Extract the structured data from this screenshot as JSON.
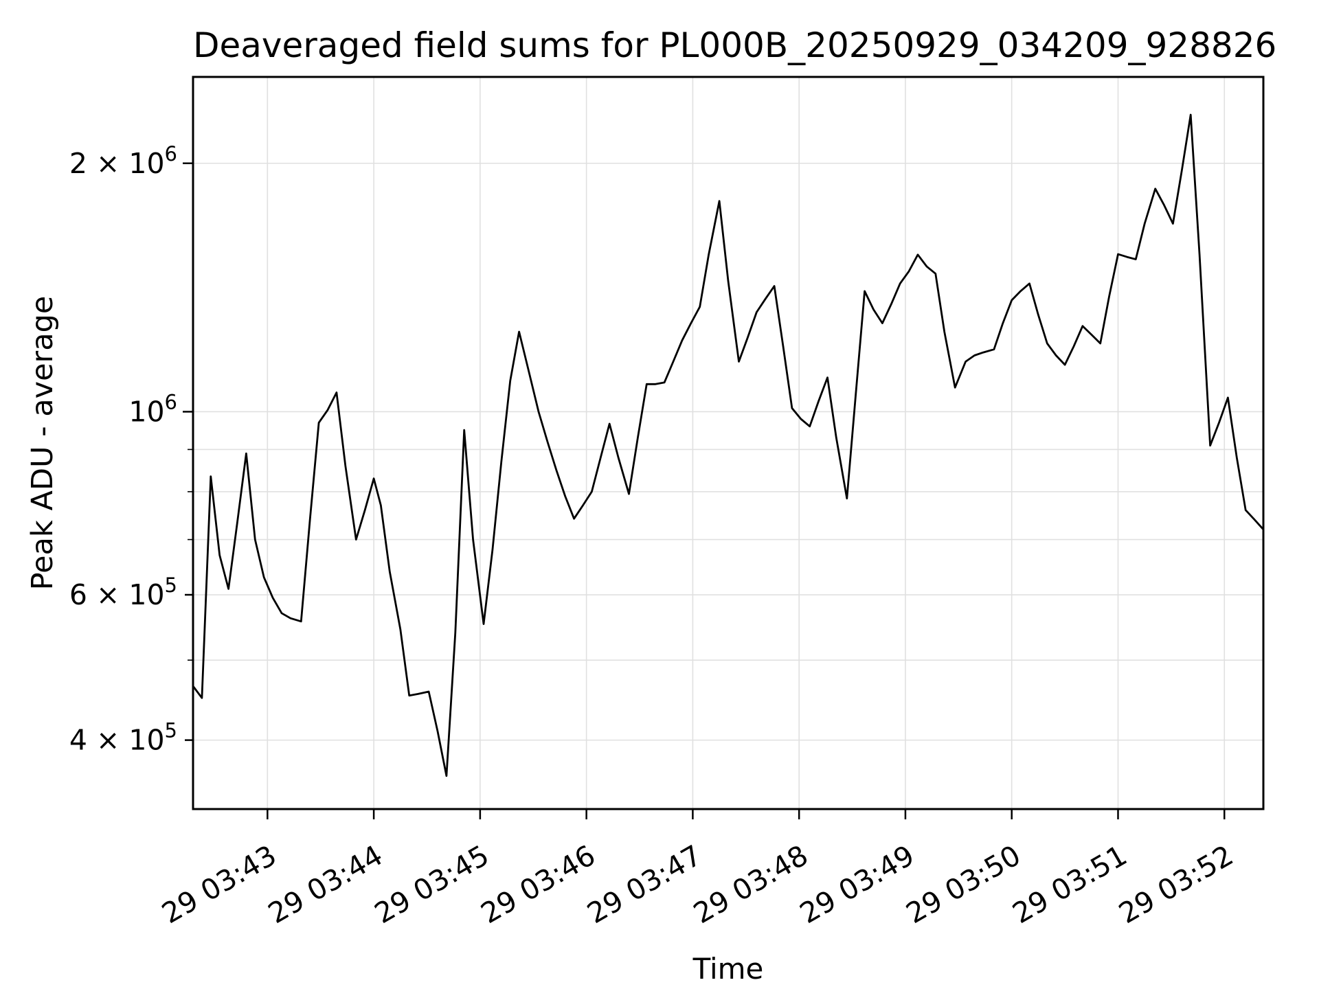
{
  "figure": {
    "title": "Deaveraged field sums for PL000B_20250929_034209_928826",
    "xlabel": "Time",
    "ylabel": "Peak ADU - average"
  },
  "chart_data": {
    "type": "line",
    "title": "Deaveraged field sums for PL000B_20250929_034209_928826",
    "xlabel": "Time",
    "ylabel": "Peak ADU - average",
    "log_y": true,
    "grid": "both",
    "legend": null,
    "background": "#ffffff",
    "line_color": "#000000",
    "grid_color": "#e0e0e0",
    "spine_color": "#000000",
    "xlim": [
      "03:42:18",
      "03:52:22"
    ],
    "ylim": [
      330000,
      2545000
    ],
    "x_ticks": [
      {
        "time": "03:43:00",
        "label": "29 03:43"
      },
      {
        "time": "03:44:00",
        "label": "29 03:44"
      },
      {
        "time": "03:45:00",
        "label": "29 03:45"
      },
      {
        "time": "03:46:00",
        "label": "29 03:46"
      },
      {
        "time": "03:47:00",
        "label": "29 03:47"
      },
      {
        "time": "03:48:00",
        "label": "29 03:48"
      },
      {
        "time": "03:49:00",
        "label": "29 03:49"
      },
      {
        "time": "03:50:00",
        "label": "29 03:50"
      },
      {
        "time": "03:51:00",
        "label": "29 03:51"
      },
      {
        "time": "03:52:00",
        "label": "29 03:52"
      }
    ],
    "y_ticks_major": [
      {
        "value": 2000000,
        "label_base": "2 × 10",
        "label_exp": "6"
      },
      {
        "value": 1000000,
        "label_base": "10",
        "label_exp": "6"
      },
      {
        "value": 600000,
        "label_base": "6 × 10",
        "label_exp": "5"
      },
      {
        "value": 400000,
        "label_base": "4 × 10",
        "label_exp": "5"
      }
    ],
    "y_ticks_minor": [
      900000,
      800000,
      700000,
      500000
    ],
    "series": [
      {
        "name": "deaveraged-field-sums",
        "points": [
          {
            "t": "03:42:18",
            "v": 465000
          },
          {
            "t": "03:42:23",
            "v": 450000
          },
          {
            "t": "03:42:28",
            "v": 835000
          },
          {
            "t": "03:42:33",
            "v": 670000
          },
          {
            "t": "03:42:38",
            "v": 610000
          },
          {
            "t": "03:42:43",
            "v": 735000
          },
          {
            "t": "03:42:48",
            "v": 890000
          },
          {
            "t": "03:42:53",
            "v": 700000
          },
          {
            "t": "03:42:58",
            "v": 630000
          },
          {
            "t": "03:43:03",
            "v": 595000
          },
          {
            "t": "03:43:08",
            "v": 570000
          },
          {
            "t": "03:43:13",
            "v": 562000
          },
          {
            "t": "03:43:19",
            "v": 557000
          },
          {
            "t": "03:43:24",
            "v": 740000
          },
          {
            "t": "03:43:29",
            "v": 970000
          },
          {
            "t": "03:43:34",
            "v": 1005000
          },
          {
            "t": "03:43:39",
            "v": 1055000
          },
          {
            "t": "03:43:44",
            "v": 860000
          },
          {
            "t": "03:43:50",
            "v": 700000
          },
          {
            "t": "03:43:55",
            "v": 760000
          },
          {
            "t": "03:44:00",
            "v": 830000
          },
          {
            "t": "03:44:04",
            "v": 770000
          },
          {
            "t": "03:44:09",
            "v": 640000
          },
          {
            "t": "03:44:15",
            "v": 545000
          },
          {
            "t": "03:44:20",
            "v": 453000
          },
          {
            "t": "03:44:25",
            "v": 455000
          },
          {
            "t": "03:44:31",
            "v": 458000
          },
          {
            "t": "03:44:36",
            "v": 410000
          },
          {
            "t": "03:44:41",
            "v": 362000
          },
          {
            "t": "03:44:46",
            "v": 540000
          },
          {
            "t": "03:44:51",
            "v": 950000
          },
          {
            "t": "03:44:56",
            "v": 700000
          },
          {
            "t": "03:45:02",
            "v": 553000
          },
          {
            "t": "03:45:07",
            "v": 680000
          },
          {
            "t": "03:45:12",
            "v": 870000
          },
          {
            "t": "03:45:17",
            "v": 1090000
          },
          {
            "t": "03:45:22",
            "v": 1250000
          },
          {
            "t": "03:45:27",
            "v": 1130000
          },
          {
            "t": "03:45:33",
            "v": 1000000
          },
          {
            "t": "03:45:38",
            "v": 920000
          },
          {
            "t": "03:45:43",
            "v": 850000
          },
          {
            "t": "03:45:48",
            "v": 790000
          },
          {
            "t": "03:45:53",
            "v": 742000
          },
          {
            "t": "03:45:58",
            "v": 770000
          },
          {
            "t": "03:46:03",
            "v": 800000
          },
          {
            "t": "03:46:08",
            "v": 880000
          },
          {
            "t": "03:46:13",
            "v": 967000
          },
          {
            "t": "03:46:18",
            "v": 880000
          },
          {
            "t": "03:46:24",
            "v": 795000
          },
          {
            "t": "03:46:29",
            "v": 930000
          },
          {
            "t": "03:46:34",
            "v": 1080000
          },
          {
            "t": "03:46:39",
            "v": 1080000
          },
          {
            "t": "03:46:44",
            "v": 1085000
          },
          {
            "t": "03:46:49",
            "v": 1150000
          },
          {
            "t": "03:46:54",
            "v": 1220000
          },
          {
            "t": "03:46:59",
            "v": 1280000
          },
          {
            "t": "03:47:04",
            "v": 1340000
          },
          {
            "t": "03:47:09",
            "v": 1550000
          },
          {
            "t": "03:47:15",
            "v": 1800000
          },
          {
            "t": "03:47:20",
            "v": 1440000
          },
          {
            "t": "03:47:26",
            "v": 1150000
          },
          {
            "t": "03:47:31",
            "v": 1230000
          },
          {
            "t": "03:47:36",
            "v": 1320000
          },
          {
            "t": "03:47:41",
            "v": 1370000
          },
          {
            "t": "03:47:46",
            "v": 1420000
          },
          {
            "t": "03:47:51",
            "v": 1200000
          },
          {
            "t": "03:47:56",
            "v": 1010000
          },
          {
            "t": "03:48:01",
            "v": 980000
          },
          {
            "t": "03:48:06",
            "v": 960000
          },
          {
            "t": "03:48:11",
            "v": 1030000
          },
          {
            "t": "03:48:16",
            "v": 1100000
          },
          {
            "t": "03:48:21",
            "v": 930000
          },
          {
            "t": "03:48:27",
            "v": 785000
          },
          {
            "t": "03:48:32",
            "v": 1050000
          },
          {
            "t": "03:48:37",
            "v": 1400000
          },
          {
            "t": "03:48:42",
            "v": 1330000
          },
          {
            "t": "03:48:47",
            "v": 1280000
          },
          {
            "t": "03:48:52",
            "v": 1350000
          },
          {
            "t": "03:48:57",
            "v": 1430000
          },
          {
            "t": "03:49:02",
            "v": 1480000
          },
          {
            "t": "03:49:07",
            "v": 1550000
          },
          {
            "t": "03:49:12",
            "v": 1500000
          },
          {
            "t": "03:49:17",
            "v": 1470000
          },
          {
            "t": "03:49:22",
            "v": 1250000
          },
          {
            "t": "03:49:28",
            "v": 1070000
          },
          {
            "t": "03:49:34",
            "v": 1150000
          },
          {
            "t": "03:49:39",
            "v": 1170000
          },
          {
            "t": "03:49:44",
            "v": 1180000
          },
          {
            "t": "03:49:50",
            "v": 1190000
          },
          {
            "t": "03:49:55",
            "v": 1280000
          },
          {
            "t": "03:50:00",
            "v": 1365000
          },
          {
            "t": "03:50:05",
            "v": 1400000
          },
          {
            "t": "03:50:10",
            "v": 1430000
          },
          {
            "t": "03:50:15",
            "v": 1310000
          },
          {
            "t": "03:50:20",
            "v": 1210000
          },
          {
            "t": "03:50:25",
            "v": 1170000
          },
          {
            "t": "03:50:30",
            "v": 1140000
          },
          {
            "t": "03:50:35",
            "v": 1200000
          },
          {
            "t": "03:50:40",
            "v": 1270000
          },
          {
            "t": "03:50:45",
            "v": 1240000
          },
          {
            "t": "03:50:50",
            "v": 1210000
          },
          {
            "t": "03:50:55",
            "v": 1380000
          },
          {
            "t": "03:51:00",
            "v": 1552000
          },
          {
            "t": "03:51:05",
            "v": 1540000
          },
          {
            "t": "03:51:10",
            "v": 1530000
          },
          {
            "t": "03:51:15",
            "v": 1690000
          },
          {
            "t": "03:51:21",
            "v": 1863000
          },
          {
            "t": "03:51:26",
            "v": 1780000
          },
          {
            "t": "03:51:31",
            "v": 1690000
          },
          {
            "t": "03:51:36",
            "v": 1960000
          },
          {
            "t": "03:51:41",
            "v": 2290000
          },
          {
            "t": "03:51:46",
            "v": 1550000
          },
          {
            "t": "03:51:52",
            "v": 910000
          },
          {
            "t": "03:51:57",
            "v": 970000
          },
          {
            "t": "03:52:02",
            "v": 1040000
          },
          {
            "t": "03:52:07",
            "v": 880000
          },
          {
            "t": "03:52:12",
            "v": 760000
          },
          {
            "t": "03:52:17",
            "v": 740000
          },
          {
            "t": "03:52:22",
            "v": 720000
          }
        ]
      }
    ]
  }
}
